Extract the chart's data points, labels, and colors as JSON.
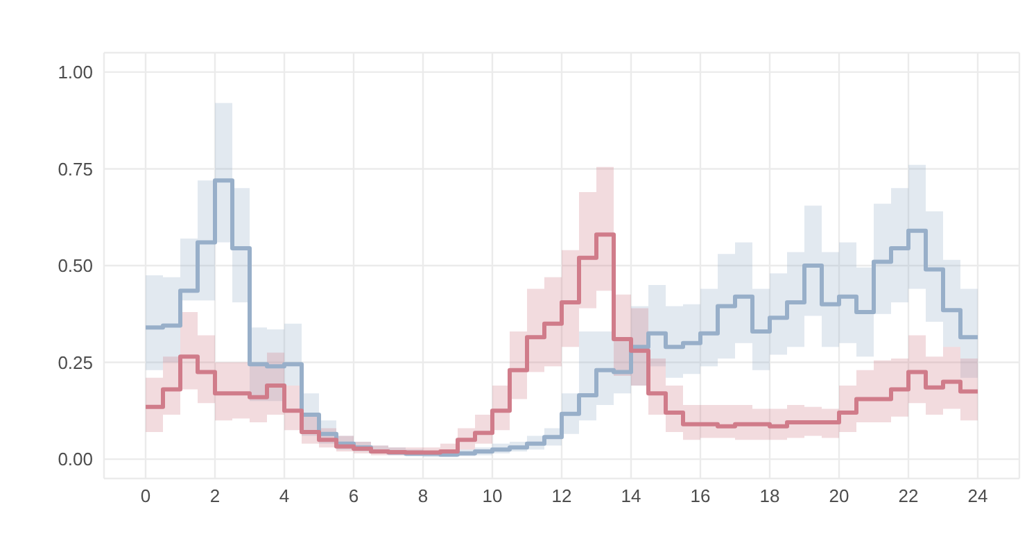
{
  "chart_data": {
    "type": "step",
    "x": [
      0,
      0.5,
      1,
      1.5,
      2,
      2.5,
      3,
      3.5,
      4,
      4.5,
      5,
      5.5,
      6,
      6.5,
      7,
      7.5,
      8,
      8.5,
      9,
      9.5,
      10,
      10.5,
      11,
      11.5,
      12,
      12.5,
      13,
      13.5,
      14,
      14.5,
      15,
      15.5,
      16,
      16.5,
      17,
      17.5,
      18,
      18.5,
      19,
      19.5,
      20,
      20.5,
      21,
      21.5,
      22,
      22.5,
      23,
      23.5,
      24
    ],
    "series": [
      {
        "color": "#98afc9",
        "values": [
          0.34,
          0.345,
          0.435,
          0.56,
          0.72,
          0.545,
          0.245,
          0.24,
          0.245,
          0.115,
          0.065,
          0.04,
          0.03,
          0.02,
          0.017,
          0.014,
          0.014,
          0.012,
          0.015,
          0.02,
          0.025,
          0.03,
          0.04,
          0.057,
          0.117,
          0.165,
          0.23,
          0.225,
          0.29,
          0.325,
          0.29,
          0.3,
          0.325,
          0.395,
          0.42,
          0.33,
          0.365,
          0.405,
          0.5,
          0.4,
          0.42,
          0.38,
          0.51,
          0.545,
          0.59,
          0.49,
          0.385,
          0.315,
          0.315
        ],
        "lower": [
          0.23,
          0.25,
          0.41,
          0.41,
          0.56,
          0.405,
          0.15,
          0.15,
          0.19,
          0.06,
          0.04,
          0.025,
          0.02,
          0.015,
          0.01,
          0.008,
          0.005,
          0.005,
          0.008,
          0.01,
          0.015,
          0.02,
          0.025,
          0.035,
          0.065,
          0.1,
          0.14,
          0.17,
          0.19,
          0.24,
          0.21,
          0.22,
          0.24,
          0.26,
          0.3,
          0.23,
          0.27,
          0.29,
          0.37,
          0.29,
          0.3,
          0.265,
          0.375,
          0.405,
          0.44,
          0.355,
          0.29,
          0.21,
          0.21
        ],
        "upper": [
          0.475,
          0.47,
          0.57,
          0.72,
          0.92,
          0.7,
          0.34,
          0.335,
          0.35,
          0.17,
          0.1,
          0.06,
          0.045,
          0.035,
          0.03,
          0.025,
          0.02,
          0.02,
          0.025,
          0.03,
          0.04,
          0.045,
          0.06,
          0.08,
          0.17,
          0.33,
          0.33,
          0.31,
          0.395,
          0.45,
          0.395,
          0.4,
          0.44,
          0.53,
          0.56,
          0.44,
          0.48,
          0.535,
          0.655,
          0.535,
          0.56,
          0.495,
          0.66,
          0.7,
          0.76,
          0.64,
          0.515,
          0.44,
          0.44
        ]
      },
      {
        "color": "#d07c8a",
        "values": [
          0.135,
          0.18,
          0.265,
          0.225,
          0.17,
          0.17,
          0.16,
          0.19,
          0.125,
          0.07,
          0.05,
          0.033,
          0.027,
          0.02,
          0.018,
          0.017,
          0.017,
          0.02,
          0.05,
          0.068,
          0.125,
          0.23,
          0.315,
          0.35,
          0.405,
          0.52,
          0.58,
          0.31,
          0.28,
          0.17,
          0.12,
          0.09,
          0.09,
          0.085,
          0.09,
          0.09,
          0.085,
          0.095,
          0.095,
          0.095,
          0.12,
          0.155,
          0.155,
          0.18,
          0.225,
          0.185,
          0.2,
          0.175,
          0.175
        ],
        "lower": [
          0.07,
          0.115,
          0.18,
          0.145,
          0.1,
          0.105,
          0.095,
          0.115,
          0.075,
          0.04,
          0.03,
          0.02,
          0.015,
          0.01,
          0.01,
          0.01,
          0.01,
          0.01,
          0.025,
          0.04,
          0.075,
          0.155,
          0.225,
          0.24,
          0.29,
          0.39,
          0.435,
          0.215,
          0.19,
          0.115,
          0.07,
          0.05,
          0.055,
          0.055,
          0.05,
          0.05,
          0.05,
          0.055,
          0.06,
          0.055,
          0.07,
          0.095,
          0.095,
          0.11,
          0.145,
          0.115,
          0.13,
          0.1,
          0.1
        ],
        "upper": [
          0.21,
          0.265,
          0.38,
          0.32,
          0.25,
          0.25,
          0.245,
          0.275,
          0.19,
          0.12,
          0.08,
          0.06,
          0.045,
          0.035,
          0.03,
          0.03,
          0.03,
          0.04,
          0.08,
          0.115,
          0.19,
          0.33,
          0.44,
          0.47,
          0.54,
          0.69,
          0.755,
          0.425,
          0.39,
          0.26,
          0.19,
          0.14,
          0.14,
          0.14,
          0.14,
          0.13,
          0.13,
          0.14,
          0.135,
          0.13,
          0.19,
          0.23,
          0.255,
          0.26,
          0.32,
          0.265,
          0.29,
          0.26,
          0.26
        ]
      }
    ],
    "xlim": [
      -1.2,
      25.2
    ],
    "xticks": [
      0,
      2,
      4,
      6,
      8,
      10,
      12,
      14,
      16,
      18,
      20,
      22,
      24
    ],
    "ylim": [
      -0.05,
      1.05
    ],
    "yticks": [
      {
        "value": 0,
        "label": "0.00"
      },
      {
        "value": 0.25,
        "label": "0.25"
      },
      {
        "value": 0.5,
        "label": "0.50"
      },
      {
        "value": 0.75,
        "label": "0.75"
      },
      {
        "value": 1,
        "label": "1.00"
      }
    ],
    "grid": true
  }
}
